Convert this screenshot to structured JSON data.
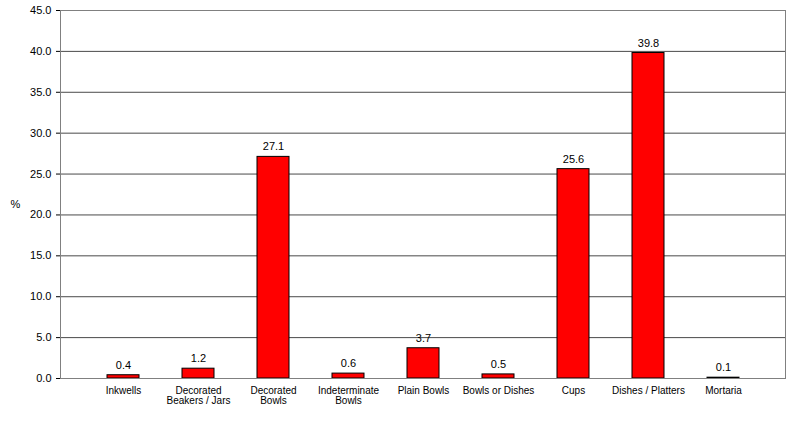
{
  "chart_data": {
    "type": "bar",
    "categories": [
      "Inkwells",
      "Decorated Beakers / Jars",
      "Decorated Bowls",
      "Indeterminate Bowls",
      "Plain Bowls",
      "Bowls or Dishes",
      "Cups",
      "Dishes / Platters",
      "Mortaria"
    ],
    "values": [
      0.4,
      1.2,
      27.1,
      0.6,
      3.7,
      0.5,
      25.6,
      39.8,
      0.1
    ],
    "color": "#ff0000",
    "ylabel": "%",
    "ylim": [
      0,
      45
    ],
    "yticks": [
      {
        "value": 0,
        "label": "0.0"
      },
      {
        "value": 5,
        "label": "5.0"
      },
      {
        "value": 10,
        "label": "10.0"
      },
      {
        "value": 15,
        "label": "15.0"
      },
      {
        "value": 20,
        "label": "20.0"
      },
      {
        "value": 25,
        "label": "25.0"
      },
      {
        "value": 30,
        "label": "30.0"
      },
      {
        "value": 35,
        "label": "35.0"
      },
      {
        "value": 40,
        "label": "40.0"
      },
      {
        "value": 45,
        "label": "45.0"
      }
    ],
    "grid": true,
    "data_labels": true
  }
}
